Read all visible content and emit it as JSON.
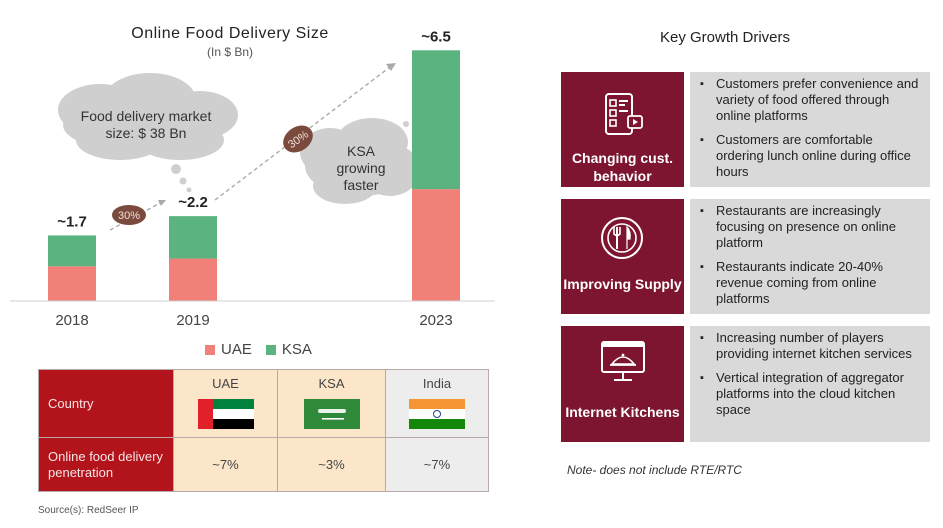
{
  "chart_data": {
    "type": "bar",
    "title": "Online Food Delivery Size",
    "subtitle": "(In  $ Bn)",
    "categories": [
      "2018",
      "2019",
      "2023"
    ],
    "series": [
      {
        "name": "UAE",
        "values": [
          0.9,
          1.1,
          2.9
        ]
      },
      {
        "name": "KSA",
        "values": [
          0.8,
          1.1,
          3.6
        ]
      }
    ],
    "totals": [
      "~1.7",
      "~2.2",
      "~6.5"
    ],
    "growth_labels": [
      "30%",
      "30%"
    ],
    "ylim": [
      0,
      7
    ],
    "colors": {
      "UAE": "#f08078",
      "KSA": "#5bb37f"
    },
    "legend": "bottom",
    "annotations": {
      "cloud1": "Food delivery market size: $ 38 Bn",
      "cloud2": "KSA growing faster"
    }
  },
  "table": {
    "row1_label": "Country",
    "row2_label": "Online food delivery penetration",
    "countries": [
      {
        "name": "UAE",
        "penetration": "~7%",
        "flag": "uae-flag"
      },
      {
        "name": "KSA",
        "penetration": "~3%",
        "flag": "ksa-flag"
      },
      {
        "name": "India",
        "penetration": "~7%",
        "flag": "india-flag"
      }
    ]
  },
  "source": "Source(s): RedSeer IP",
  "drivers": {
    "title": "Key Growth Drivers",
    "items": [
      {
        "label": "Changing cust. behavior",
        "icon": "mobile-menu-icon",
        "bullets": [
          "Customers prefer convenience and variety of food offered through online platforms",
          "Customers are comfortable ordering lunch online during office hours"
        ]
      },
      {
        "label": "Improving Supply",
        "icon": "plate-cutlery-icon",
        "bullets": [
          "Restaurants are increasingly focusing on presence on online platform",
          "Restaurants indicate 20-40% revenue coming from online platforms"
        ]
      },
      {
        "label": "Internet Kitchens",
        "icon": "cloud-kitchen-icon",
        "bullets": [
          "Increasing number of players providing internet kitchen services",
          "Vertical integration of aggregator platforms into the cloud kitchen space"
        ]
      }
    ],
    "note": "Note- does not include RTE/RTC"
  }
}
